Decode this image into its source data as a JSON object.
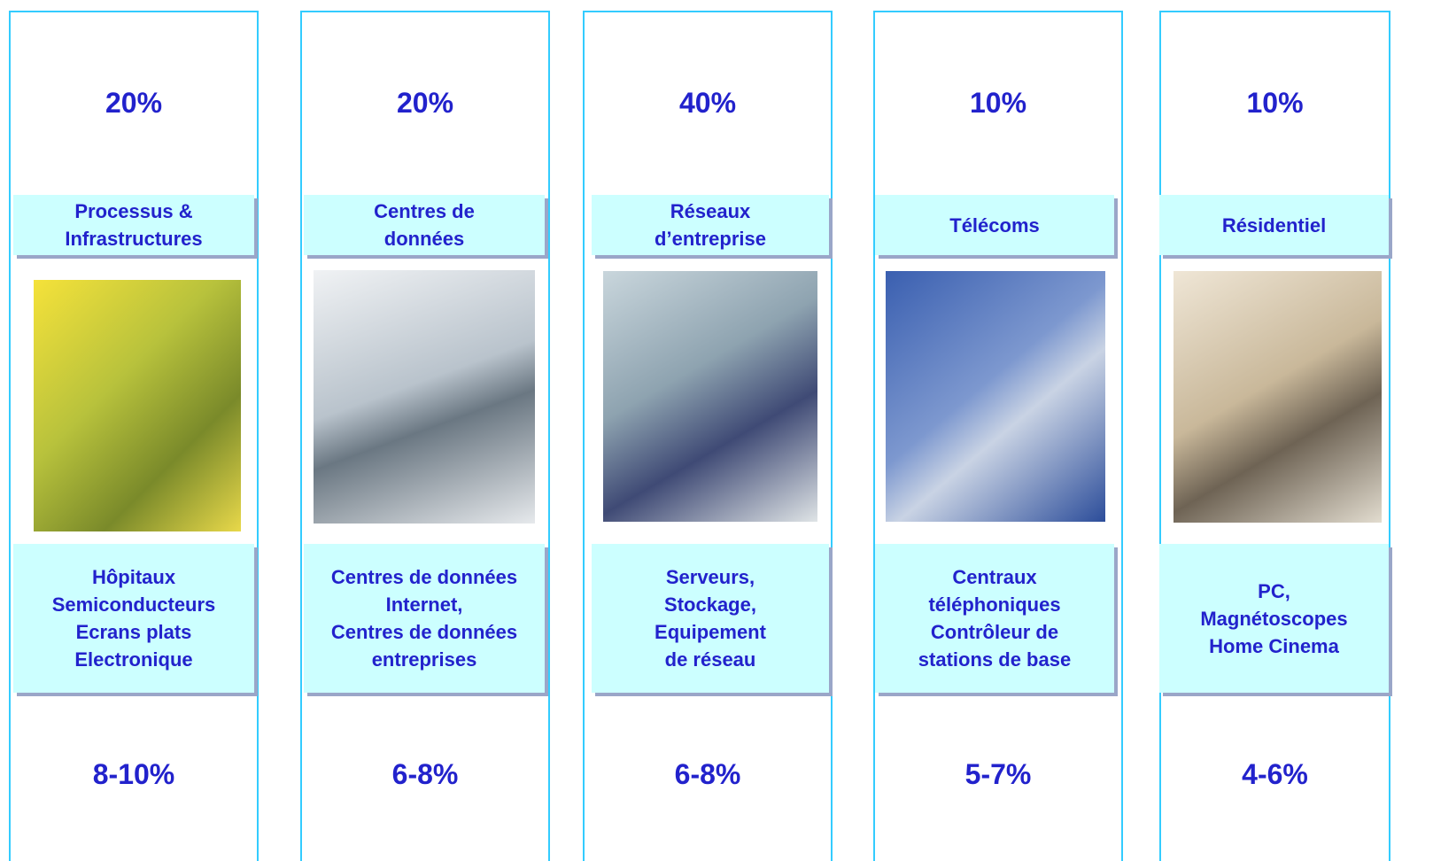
{
  "columns": [
    {
      "share": "20%",
      "title": [
        "Processus &",
        "Infrastructures"
      ],
      "examples": [
        "Hôpitaux",
        "Semiconducteurs",
        "Ecrans plats",
        "Electronique"
      ],
      "growth": "8-10%"
    },
    {
      "share": "20%",
      "title": [
        "Centres de",
        "données"
      ],
      "examples": [
        "Centres de données",
        "Internet,",
        "Centres de données",
        "entreprises"
      ],
      "growth": "6-8%"
    },
    {
      "share": "40%",
      "title": [
        "Réseaux",
        "d’entreprise"
      ],
      "examples": [
        "Serveurs,",
        "Stockage,",
        "Equipement",
        "de réseau"
      ],
      "growth": "6-8%"
    },
    {
      "share": "10%",
      "title": [
        "Télécoms"
      ],
      "examples": [
        "Centraux",
        "téléphoniques",
        "Contrôleur de",
        "stations de base"
      ],
      "growth": "5-7%"
    },
    {
      "share": "10%",
      "title": [
        "Résidentiel"
      ],
      "examples": [
        "PC,",
        "Magnétoscopes",
        "Home Cinema"
      ],
      "growth": "4-6%"
    }
  ]
}
